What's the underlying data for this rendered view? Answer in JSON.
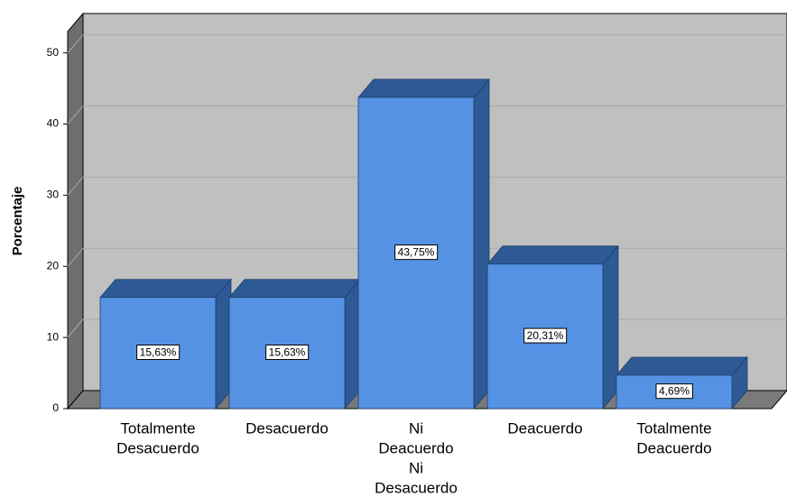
{
  "chart_data": {
    "type": "bar3d",
    "y_label": "Porcentaje",
    "categories": [
      [
        "Totalmente",
        "Desacuerdo"
      ],
      [
        "Desacuerdo"
      ],
      [
        "Ni",
        "Deacuerdo",
        "Ni",
        "Desacuerdo"
      ],
      [
        "Deacuerdo"
      ],
      [
        "Totalmente",
        "Deacuerdo"
      ]
    ],
    "values": [
      15.63,
      15.63,
      43.75,
      20.31,
      4.69
    ],
    "value_labels": [
      "15,63%",
      "15,63%",
      "43,75%",
      "20,31%",
      "4,69%"
    ],
    "color": "#5592e3",
    "depth_color": "#2d5a94",
    "ylim": [
      0,
      53
    ],
    "yticks": [
      0,
      10,
      20,
      30,
      40,
      50
    ],
    "grid": true
  }
}
